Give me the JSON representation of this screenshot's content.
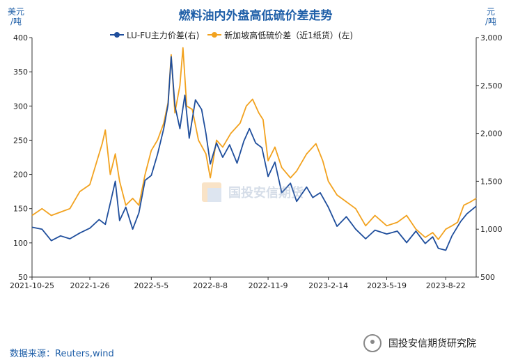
{
  "title": "燃料油内外盘高低硫价差走势",
  "left_unit": "美元\n/吨",
  "right_unit": "元\n/吨",
  "source": "数据来源：Reuters,wind",
  "watermark": "国投安信期货",
  "brand": "国投安信期货研究院",
  "colors": {
    "lufu": "#1f4e9c",
    "sg": "#f2a21f",
    "text": "#1f5fa8",
    "axis": "#222222"
  },
  "chart_data": {
    "type": "line",
    "title": "燃料油内外盘高低硫价差走势",
    "left_axis": {
      "label": "美元/吨",
      "min": 50,
      "max": 400,
      "ticks": [
        50,
        100,
        150,
        200,
        250,
        300,
        350,
        400
      ]
    },
    "right_axis": {
      "label": "元/吨",
      "min": 500,
      "max": 3000,
      "ticks": [
        "500",
        "1,000",
        "1,500",
        "2,000",
        "2,500",
        "3,000"
      ]
    },
    "x_labels": [
      "2021-10-25",
      "2022-1-26",
      "2022-5-5",
      "2022-8-8",
      "2022-11-9",
      "2023-2-14",
      "2023-5-19",
      "2023-8-22"
    ],
    "x_range": [
      "2021-10-25",
      "2023-10-10"
    ],
    "legend_position": "top",
    "series": [
      {
        "name": "LU-FU主力价差(右)",
        "axis": "right",
        "color": "#1f4e9c",
        "points": [
          [
            "2021-10-25",
            1020
          ],
          [
            "2021-11-10",
            1000
          ],
          [
            "2021-11-25",
            880
          ],
          [
            "2021-12-10",
            930
          ],
          [
            "2021-12-25",
            900
          ],
          [
            "2022-1-10",
            960
          ],
          [
            "2022-1-26",
            1010
          ],
          [
            "2022-2-10",
            1100
          ],
          [
            "2022-2-20",
            1050
          ],
          [
            "2022-3-01",
            1300
          ],
          [
            "2022-3-08",
            1500
          ],
          [
            "2022-3-15",
            1090
          ],
          [
            "2022-3-25",
            1230
          ],
          [
            "2022-4-05",
            1000
          ],
          [
            "2022-4-15",
            1170
          ],
          [
            "2022-4-25",
            1510
          ],
          [
            "2022-5-05",
            1560
          ],
          [
            "2022-5-15",
            1780
          ],
          [
            "2022-5-25",
            2050
          ],
          [
            "2022-6-01",
            2300
          ],
          [
            "2022-6-06",
            2800
          ],
          [
            "2022-6-12",
            2290
          ],
          [
            "2022-6-20",
            2050
          ],
          [
            "2022-6-28",
            2400
          ],
          [
            "2022-7-05",
            1950
          ],
          [
            "2022-7-15",
            2350
          ],
          [
            "2022-7-25",
            2250
          ],
          [
            "2022-8-01",
            2000
          ],
          [
            "2022-8-08",
            1680
          ],
          [
            "2022-8-18",
            1900
          ],
          [
            "2022-8-28",
            1750
          ],
          [
            "2022-9-08",
            1880
          ],
          [
            "2022-9-20",
            1690
          ],
          [
            "2022-10-01",
            1920
          ],
          [
            "2022-10-10",
            2050
          ],
          [
            "2022-10-20",
            1900
          ],
          [
            "2022-10-30",
            1850
          ],
          [
            "2022-11-09",
            1550
          ],
          [
            "2022-11-20",
            1700
          ],
          [
            "2022-12-01",
            1380
          ],
          [
            "2022-12-15",
            1480
          ],
          [
            "2022-12-25",
            1290
          ],
          [
            "2023-1-10",
            1440
          ],
          [
            "2023-1-20",
            1330
          ],
          [
            "2023-2-01",
            1380
          ],
          [
            "2023-2-14",
            1230
          ],
          [
            "2023-2-28",
            1030
          ],
          [
            "2023-3-15",
            1130
          ],
          [
            "2023-3-30",
            1000
          ],
          [
            "2023-4-15",
            900
          ],
          [
            "2023-4-30",
            990
          ],
          [
            "2023-5-19",
            950
          ],
          [
            "2023-6-05",
            980
          ],
          [
            "2023-6-20",
            860
          ],
          [
            "2023-7-05",
            980
          ],
          [
            "2023-7-20",
            850
          ],
          [
            "2023-8-01",
            920
          ],
          [
            "2023-8-10",
            800
          ],
          [
            "2023-8-22",
            780
          ],
          [
            "2023-9-01",
            930
          ],
          [
            "2023-9-15",
            1080
          ],
          [
            "2023-9-25",
            1160
          ],
          [
            "2023-10-10",
            1240
          ]
        ]
      },
      {
        "name": "新加坡高低硫价差（近1纸货）(左)",
        "axis": "left",
        "color": "#f2a21f",
        "points": [
          [
            "2021-10-25",
            140
          ],
          [
            "2021-11-10",
            150
          ],
          [
            "2021-11-25",
            140
          ],
          [
            "2021-12-10",
            145
          ],
          [
            "2021-12-25",
            150
          ],
          [
            "2022-1-10",
            175
          ],
          [
            "2022-1-26",
            185
          ],
          [
            "2022-2-05",
            215
          ],
          [
            "2022-2-15",
            245
          ],
          [
            "2022-2-20",
            265
          ],
          [
            "2022-2-28",
            200
          ],
          [
            "2022-3-08",
            230
          ],
          [
            "2022-3-15",
            190
          ],
          [
            "2022-3-25",
            155
          ],
          [
            "2022-4-05",
            165
          ],
          [
            "2022-4-15",
            155
          ],
          [
            "2022-4-25",
            200
          ],
          [
            "2022-5-05",
            235
          ],
          [
            "2022-5-15",
            250
          ],
          [
            "2022-5-25",
            275
          ],
          [
            "2022-6-01",
            305
          ],
          [
            "2022-6-06",
            375
          ],
          [
            "2022-6-12",
            290
          ],
          [
            "2022-6-20",
            330
          ],
          [
            "2022-6-25",
            385
          ],
          [
            "2022-7-01",
            300
          ],
          [
            "2022-7-10",
            295
          ],
          [
            "2022-7-20",
            250
          ],
          [
            "2022-8-01",
            230
          ],
          [
            "2022-8-08",
            195
          ],
          [
            "2022-8-18",
            250
          ],
          [
            "2022-8-28",
            240
          ],
          [
            "2022-9-10",
            260
          ],
          [
            "2022-9-25",
            275
          ],
          [
            "2022-10-05",
            300
          ],
          [
            "2022-10-15",
            310
          ],
          [
            "2022-10-25",
            290
          ],
          [
            "2022-11-01",
            280
          ],
          [
            "2022-11-09",
            220
          ],
          [
            "2022-11-20",
            240
          ],
          [
            "2022-12-01",
            210
          ],
          [
            "2022-12-15",
            195
          ],
          [
            "2022-12-25",
            205
          ],
          [
            "2023-1-10",
            230
          ],
          [
            "2023-1-25",
            245
          ],
          [
            "2023-2-05",
            220
          ],
          [
            "2023-2-14",
            190
          ],
          [
            "2023-2-28",
            170
          ],
          [
            "2023-3-15",
            160
          ],
          [
            "2023-3-30",
            150
          ],
          [
            "2023-4-15",
            125
          ],
          [
            "2023-4-30",
            140
          ],
          [
            "2023-5-19",
            125
          ],
          [
            "2023-6-05",
            130
          ],
          [
            "2023-6-20",
            140
          ],
          [
            "2023-7-05",
            120
          ],
          [
            "2023-7-20",
            108
          ],
          [
            "2023-8-01",
            115
          ],
          [
            "2023-8-10",
            105
          ],
          [
            "2023-8-22",
            120
          ],
          [
            "2023-9-01",
            125
          ],
          [
            "2023-9-10",
            130
          ],
          [
            "2023-9-20",
            155
          ],
          [
            "2023-10-01",
            160
          ],
          [
            "2023-10-10",
            165
          ]
        ]
      }
    ]
  }
}
